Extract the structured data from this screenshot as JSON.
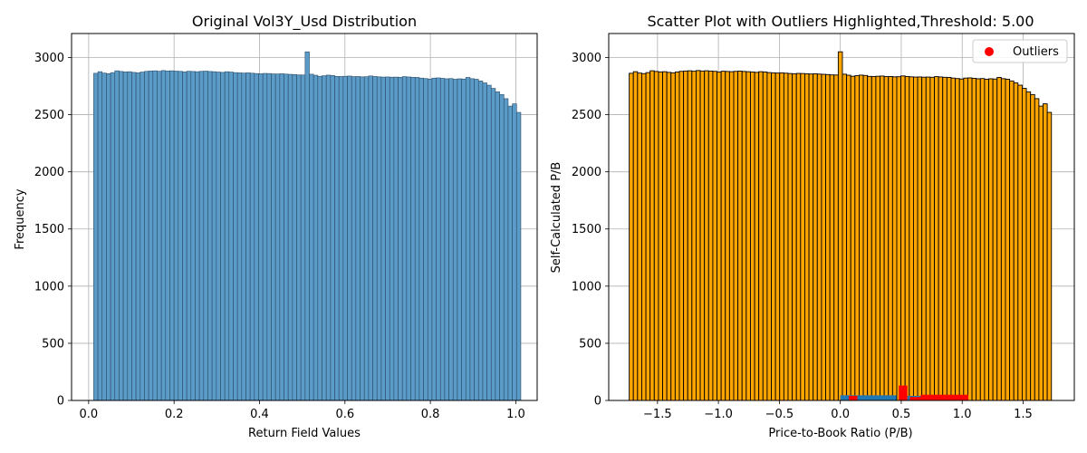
{
  "chart_data": [
    {
      "type": "bar",
      "title": "Original Vol3Y_Usd Distribution",
      "xlabel": "Return Field Values",
      "ylabel": "Frequency",
      "xlim": [
        -0.04,
        1.05
      ],
      "ylim": [
        0,
        3210
      ],
      "xticks": [
        0.0,
        0.2,
        0.4,
        0.6,
        0.8,
        1.0
      ],
      "xtick_labels": [
        "0.0",
        "0.2",
        "0.4",
        "0.6",
        "0.8",
        "1.0"
      ],
      "yticks": [
        0,
        500,
        1000,
        1500,
        2000,
        2500,
        3000
      ],
      "ytick_labels": [
        "0",
        "500",
        "1000",
        "1500",
        "2000",
        "2500",
        "3000"
      ],
      "grid": true,
      "bar_color": "#5b9bc8",
      "bin_start": 0.0118,
      "bin_width": 0.0099,
      "values": [
        2862,
        2876,
        2864,
        2859,
        2868,
        2884,
        2878,
        2874,
        2876,
        2870,
        2866,
        2873,
        2879,
        2882,
        2884,
        2880,
        2886,
        2882,
        2884,
        2881,
        2879,
        2874,
        2880,
        2878,
        2876,
        2879,
        2881,
        2878,
        2876,
        2873,
        2870,
        2876,
        2873,
        2868,
        2866,
        2864,
        2866,
        2863,
        2860,
        2858,
        2861,
        2860,
        2857,
        2856,
        2858,
        2855,
        2853,
        2851,
        2848,
        2847,
        3050,
        2854,
        2845,
        2836,
        2841,
        2846,
        2843,
        2835,
        2834,
        2836,
        2838,
        2833,
        2834,
        2831,
        2832,
        2839,
        2834,
        2831,
        2829,
        2830,
        2828,
        2829,
        2827,
        2833,
        2830,
        2827,
        2826,
        2820,
        2816,
        2812,
        2820,
        2822,
        2818,
        2814,
        2816,
        2810,
        2814,
        2812,
        2826,
        2815,
        2810,
        2795,
        2778,
        2758,
        2730,
        2700,
        2676,
        2640,
        2575,
        2595,
        2520
      ]
    },
    {
      "type": "bar",
      "title": "Scatter Plot with Outliers Highlighted,Threshold: 5.00",
      "xlabel": "Price-to-Book Ratio (P/B)",
      "ylabel": "Self-Calculated P/B",
      "xlim": [
        -1.9,
        1.92
      ],
      "ylim": [
        0,
        3210
      ],
      "xticks": [
        -1.5,
        -1.0,
        -0.5,
        0.0,
        0.5,
        1.0,
        1.5
      ],
      "xtick_labels": [
        "−1.5",
        "−1.0",
        "−0.5",
        "0.0",
        "0.5",
        "1.0",
        "1.5"
      ],
      "yticks": [
        0,
        500,
        1000,
        1500,
        2000,
        2500,
        3000
      ],
      "ytick_labels": [
        "0",
        "500",
        "1000",
        "1500",
        "2000",
        "2500",
        "3000"
      ],
      "grid": true,
      "legend": {
        "position": "upper-right",
        "entries": [
          {
            "label": "Outliers",
            "color": "#ff0000",
            "marker": "circle"
          }
        ]
      },
      "bar_color": "#ffa500",
      "bin_start": -1.732,
      "bin_width": 0.0343,
      "values_same_as_left_chart": true,
      "overlay_blue_segments": [
        {
          "x0": 0.0,
          "x1": 0.46,
          "y": 45
        },
        {
          "x0": 0.55,
          "x1": 0.9,
          "y": 40
        }
      ],
      "outliers": [
        {
          "x0": 0.07,
          "x1": 0.14,
          "y": 40
        },
        {
          "x0": 0.48,
          "x1": 0.55,
          "y": 130
        },
        {
          "x0": 0.57,
          "x1": 0.66,
          "y": 30
        },
        {
          "x0": 0.66,
          "x1": 1.05,
          "y": 50
        }
      ]
    }
  ]
}
